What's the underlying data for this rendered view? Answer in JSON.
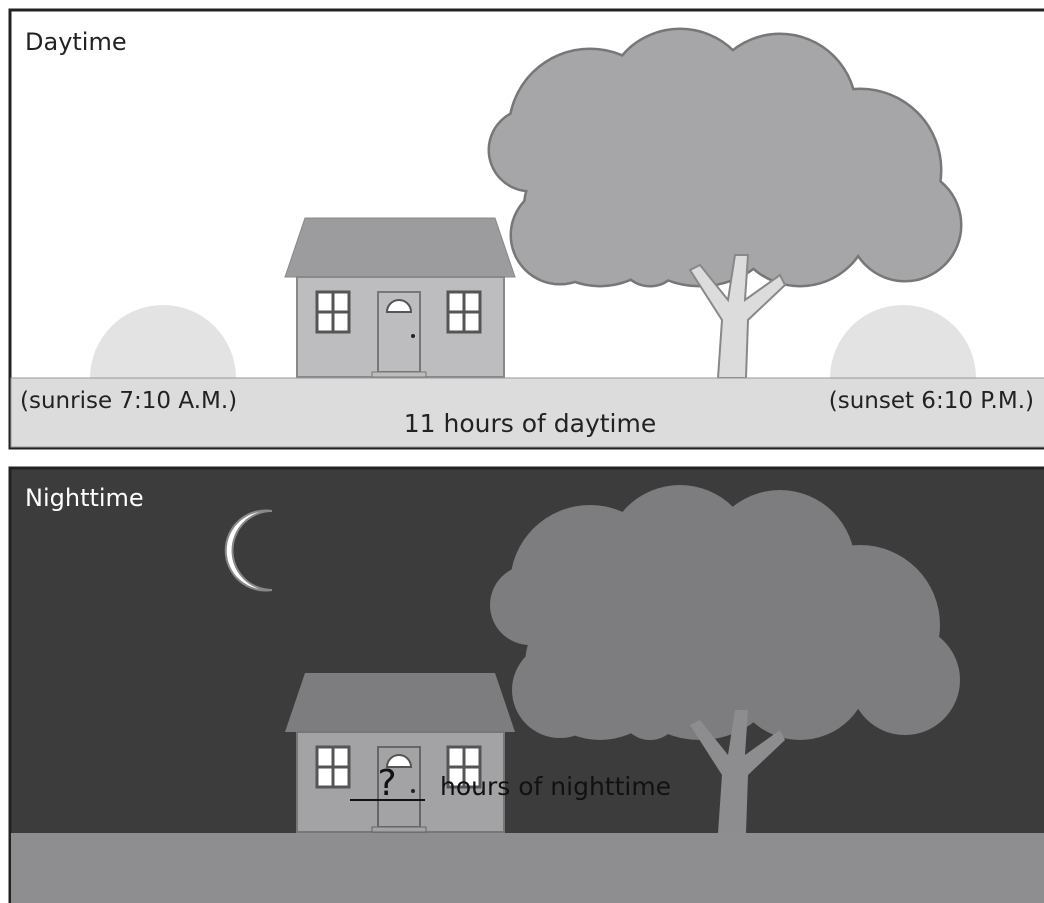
{
  "day_panel": {
    "title": "Daytime",
    "sunrise": "(sunrise 7:10 A.M.)",
    "sunset": "(sunset 6:10 P.M.)",
    "caption": "11 hours of daytime"
  },
  "night_panel": {
    "title": "Nighttime",
    "blank": "?",
    "caption": "hours of nighttime"
  }
}
